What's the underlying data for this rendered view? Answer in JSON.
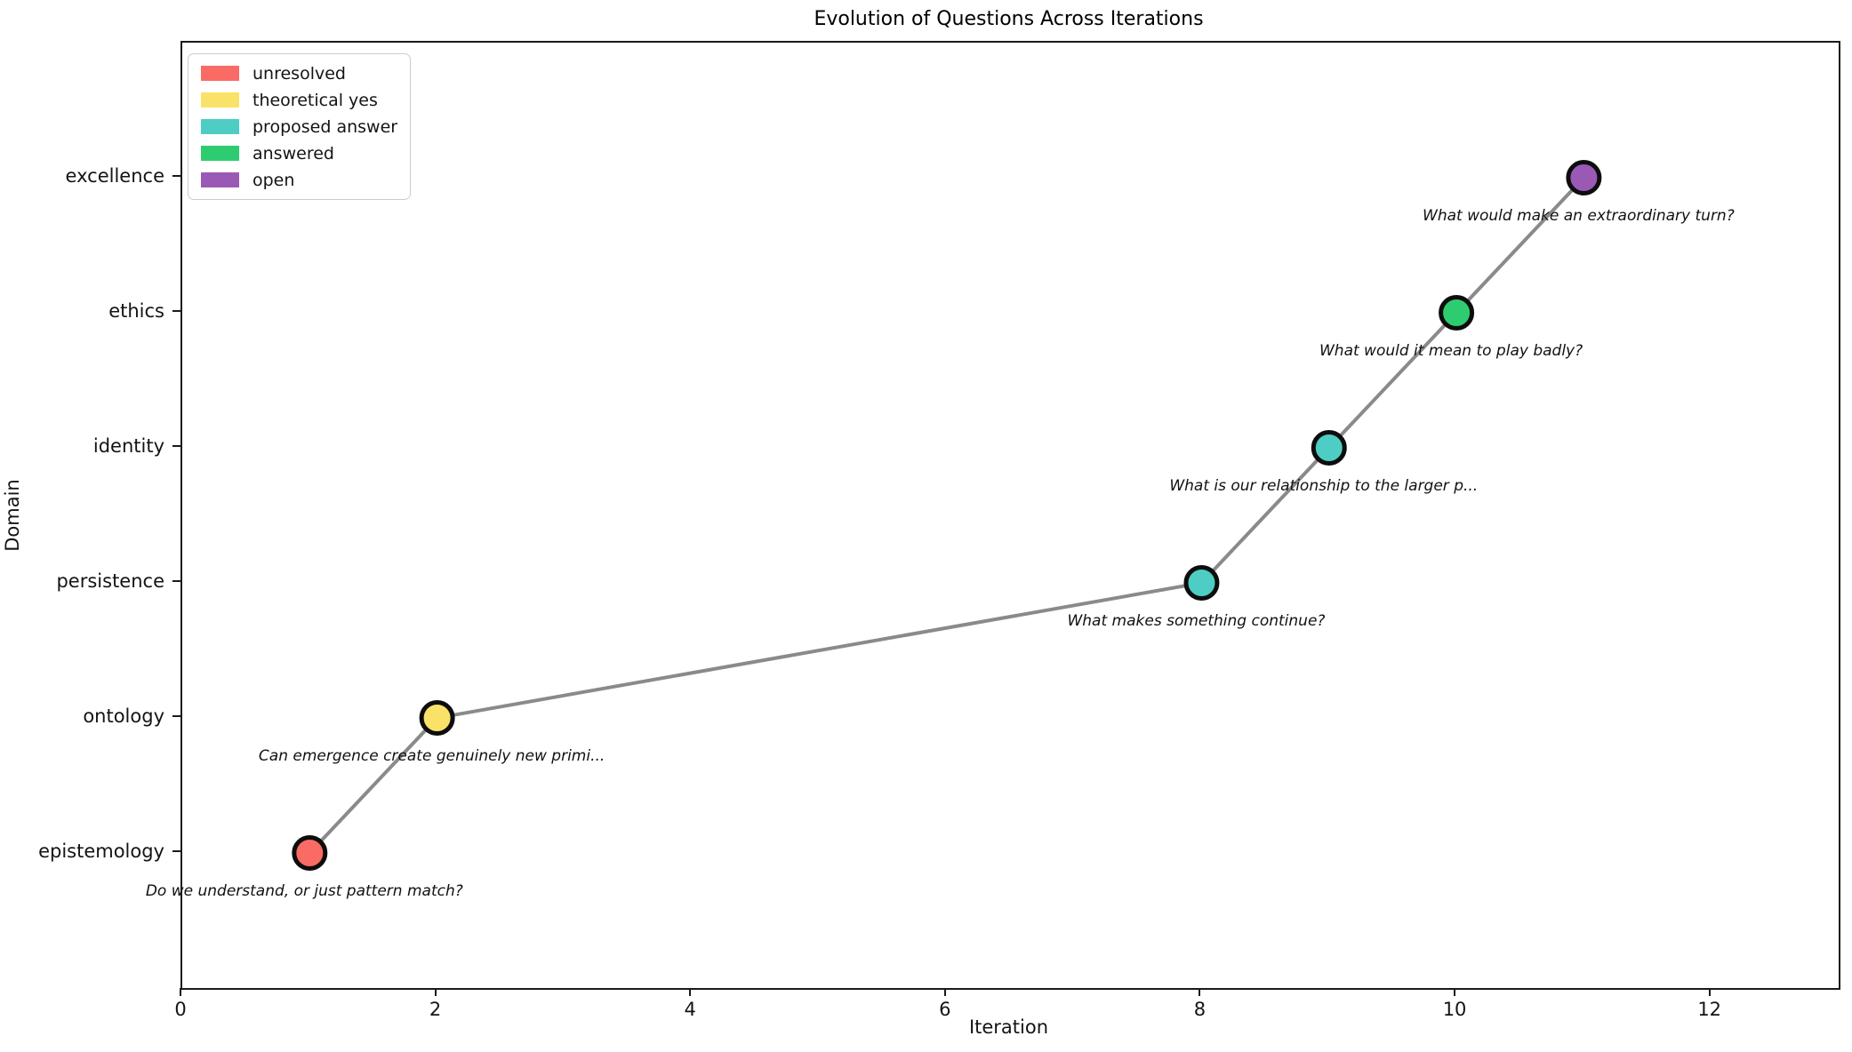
{
  "chart_data": {
    "type": "scatter",
    "title": "Evolution of Questions Across Iterations",
    "xlabel": "Iteration",
    "ylabel": "Domain",
    "xlim": [
      0,
      13
    ],
    "ylim": [
      0,
      7
    ],
    "x_ticks": [
      0,
      2,
      4,
      6,
      8,
      10,
      12
    ],
    "y_categories": [
      "epistemology",
      "ontology",
      "persistence",
      "identity",
      "ethics",
      "excellence"
    ],
    "grid": false,
    "legend_position": "upper left",
    "legend": [
      {
        "label": "unresolved",
        "color": "#F96B64"
      },
      {
        "label": "theoretical yes",
        "color": "#FAE268"
      },
      {
        "label": "proposed answer",
        "color": "#4ECDC4"
      },
      {
        "label": "answered",
        "color": "#2ECC71"
      },
      {
        "label": "open",
        "color": "#9B59B6"
      }
    ],
    "line_color": "#8a8a8a",
    "marker_edge_color": "#0d0d0d",
    "points": [
      {
        "x": 1,
        "y": 1,
        "domain": "epistemology",
        "status": "unresolved",
        "color": "#F96B64",
        "annotation": "Do we understand, or just pattern match?"
      },
      {
        "x": 2,
        "y": 2,
        "domain": "ontology",
        "status": "theoretical yes",
        "color": "#FAE268",
        "annotation": "Can emergence create genuinely new primi..."
      },
      {
        "x": 8,
        "y": 3,
        "domain": "persistence",
        "status": "proposed answer",
        "color": "#4ECDC4",
        "annotation": "What makes something continue?"
      },
      {
        "x": 9,
        "y": 4,
        "domain": "identity",
        "status": "proposed answer",
        "color": "#4ECDC4",
        "annotation": "What is our relationship to the larger p..."
      },
      {
        "x": 10,
        "y": 5,
        "domain": "ethics",
        "status": "answered",
        "color": "#2ECC71",
        "annotation": "What would it mean to play badly?"
      },
      {
        "x": 11,
        "y": 6,
        "domain": "excellence",
        "status": "open",
        "color": "#9B59B6",
        "annotation": "What would make an extraordinary turn?"
      }
    ]
  }
}
